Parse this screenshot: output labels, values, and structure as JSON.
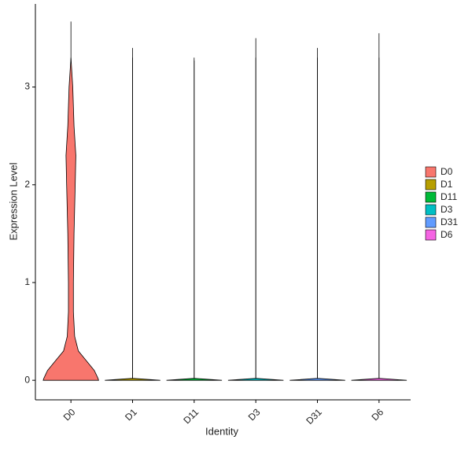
{
  "chart_data": {
    "type": "violin",
    "x_label": "Identity",
    "y_label": "Expression Level",
    "categories": [
      "D0",
      "D1",
      "D11",
      "D3",
      "D31",
      "D6"
    ],
    "ylim": [
      -0.2,
      3.85
    ],
    "yticks": [
      0,
      1,
      2,
      3
    ],
    "density_y": [
      0,
      0.02,
      0.1,
      0.2,
      0.3,
      0.45,
      0.7,
      1,
      1.5,
      2,
      2.3,
      2.6,
      3,
      3.3
    ],
    "series": [
      {
        "name": "D0",
        "color": "#F8766D",
        "max": 3.67,
        "widths": [
          0.45,
          0.44,
          0.38,
          0.25,
          0.12,
          0.06,
          0.04,
          0.04,
          0.05,
          0.07,
          0.08,
          0.05,
          0.03,
          0
        ]
      },
      {
        "name": "D1",
        "color": "#B79F00",
        "max": 3.4,
        "widths": [
          0.45,
          0,
          0,
          0,
          0,
          0,
          0,
          0,
          0,
          0,
          0,
          0,
          0,
          0
        ]
      },
      {
        "name": "D11",
        "color": "#00BA38",
        "max": 3.27,
        "widths": [
          0.45,
          0,
          0,
          0,
          0,
          0,
          0,
          0,
          0,
          0,
          0,
          0,
          0,
          0
        ]
      },
      {
        "name": "D3",
        "color": "#00BFC4",
        "max": 3.5,
        "widths": [
          0.45,
          0,
          0,
          0,
          0,
          0,
          0,
          0,
          0,
          0,
          0,
          0,
          0,
          0
        ]
      },
      {
        "name": "D31",
        "color": "#619CFF",
        "max": 3.4,
        "widths": [
          0.45,
          0,
          0,
          0,
          0,
          0,
          0,
          0,
          0,
          0,
          0,
          0,
          0,
          0
        ]
      },
      {
        "name": "D6",
        "color": "#F564E3",
        "max": 3.55,
        "widths": [
          0.45,
          0,
          0,
          0,
          0,
          0,
          0,
          0,
          0,
          0,
          0,
          0,
          0,
          0
        ]
      }
    ]
  }
}
